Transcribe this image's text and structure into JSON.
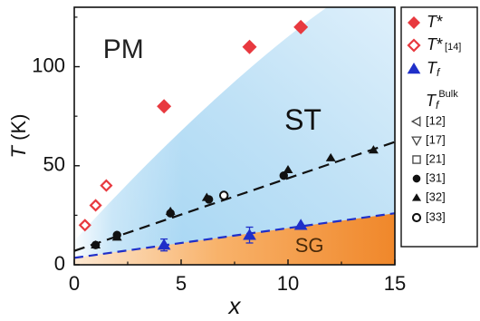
{
  "chart_data": {
    "type": "scatter",
    "xlabel": "x",
    "ylabel_italic": "T",
    "ylabel_unit": " (K)",
    "xlim": [
      0,
      15
    ],
    "ylim": [
      0,
      130
    ],
    "xticks": [
      0,
      5,
      10,
      15
    ],
    "yticks": [
      0,
      50,
      100
    ],
    "regions": [
      {
        "label": "PM",
        "x": 2.3,
        "y": 108
      },
      {
        "label": "ST",
        "x": 10.7,
        "y": 72
      },
      {
        "label": "SG",
        "x": 11.0,
        "y": 9
      }
    ],
    "lines": [
      {
        "name": "black dashed",
        "color": "#111111",
        "x": [
          0,
          15
        ],
        "y": [
          7,
          62
        ]
      },
      {
        "name": "blue dashed",
        "color": "#1f2fc9",
        "x": [
          0,
          15
        ],
        "y": [
          3.5,
          26
        ]
      }
    ],
    "series": [
      {
        "name": "T*",
        "super": "",
        "ref": "",
        "marker": "diamond-filled",
        "color": "#e8393f",
        "points": [
          [
            4.2,
            80
          ],
          [
            8.2,
            110
          ],
          [
            10.6,
            120
          ]
        ]
      },
      {
        "name": "T*",
        "super": "",
        "ref": "[14]",
        "marker": "diamond-open",
        "color": "#e8393f",
        "points": [
          [
            0.5,
            20
          ],
          [
            1.0,
            30
          ],
          [
            1.5,
            40
          ]
        ]
      },
      {
        "name": "T",
        "sub": "f",
        "super": "",
        "ref": "",
        "marker": "triangle-up-filled",
        "color": "#1f2fc9",
        "points": [
          [
            4.2,
            10,
            3
          ],
          [
            8.2,
            15,
            4
          ],
          [
            10.6,
            20,
            0
          ]
        ]
      },
      {
        "name": "T",
        "sub": "f",
        "super": "Bulk",
        "ref": "",
        "marker": "none",
        "color": "#111111",
        "points": []
      },
      {
        "name": "",
        "ref": "[12]",
        "marker": "triangle-left-open",
        "color": "#444444",
        "points": []
      },
      {
        "name": "",
        "ref": "[17]",
        "marker": "triangle-down-open",
        "color": "#444444",
        "points": []
      },
      {
        "name": "",
        "ref": "[21]",
        "marker": "square-open",
        "color": "#444444",
        "points": []
      },
      {
        "name": "",
        "ref": "[31]",
        "marker": "circle-filled",
        "color": "#111111",
        "points": [
          [
            1.0,
            10
          ],
          [
            2.0,
            15
          ],
          [
            4.5,
            26
          ],
          [
            6.3,
            33
          ],
          [
            9.8,
            45
          ]
        ]
      },
      {
        "name": "",
        "ref": "[32]",
        "marker": "triangle-up-filled",
        "color": "#111111",
        "points": [
          [
            1.0,
            10
          ],
          [
            2.0,
            14
          ],
          [
            4.5,
            27
          ],
          [
            6.2,
            34
          ],
          [
            10.0,
            48
          ],
          [
            12.0,
            54
          ],
          [
            14.0,
            58
          ]
        ]
      },
      {
        "name": "",
        "ref": "[33]",
        "marker": "circle-open",
        "color": "#111111",
        "points": [
          [
            7.0,
            35
          ]
        ]
      }
    ]
  }
}
